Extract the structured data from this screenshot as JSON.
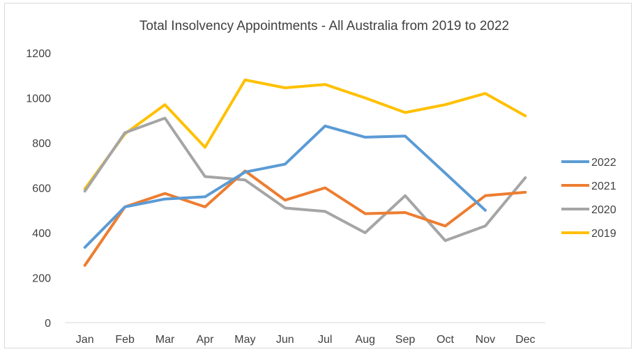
{
  "chart_data": {
    "type": "line",
    "title": "Total Insolvency Appointments - All Australia from 2019 to 2022",
    "xlabel": "",
    "ylabel": "",
    "categories": [
      "Jan",
      "Feb",
      "Mar",
      "Apr",
      "May",
      "Jun",
      "Jul",
      "Aug",
      "Sep",
      "Oct",
      "Nov",
      "Dec"
    ],
    "ylim": [
      0,
      1200
    ],
    "yticks": [
      0,
      200,
      400,
      600,
      800,
      1000,
      1200
    ],
    "grid": false,
    "legend_position": "right",
    "series": [
      {
        "name": "2022",
        "color": "#5b9bd5",
        "values": [
          335,
          515,
          550,
          560,
          670,
          705,
          875,
          825,
          830,
          665,
          500,
          null
        ]
      },
      {
        "name": "2021",
        "color": "#ed7d31",
        "values": [
          255,
          515,
          575,
          515,
          675,
          545,
          600,
          485,
          490,
          430,
          565,
          580
        ]
      },
      {
        "name": "2020",
        "color": "#a5a5a5",
        "values": [
          585,
          845,
          910,
          650,
          635,
          510,
          495,
          400,
          565,
          365,
          430,
          645
        ]
      },
      {
        "name": "2019",
        "color": "#ffc000",
        "values": [
          595,
          840,
          970,
          780,
          1080,
          1045,
          1060,
          1000,
          935,
          970,
          1020,
          920
        ]
      }
    ]
  }
}
